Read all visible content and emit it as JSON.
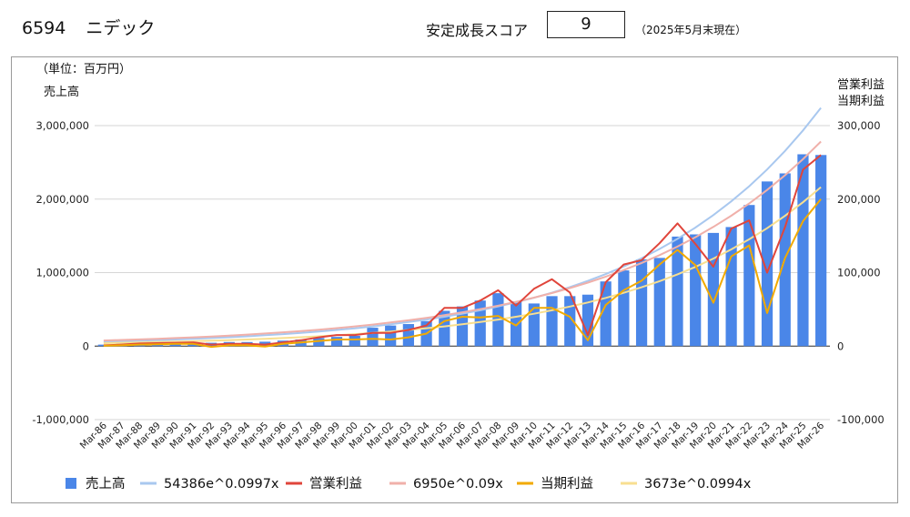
{
  "header": {
    "code": "6594",
    "name": "ニデック",
    "score_label": "安定成長スコア",
    "score_value": "9",
    "as_of": "（2025年5月末現在）"
  },
  "chart_data": {
    "type": "bar",
    "unit_label": "（単位：百万円）",
    "left_axis_title": "売上高",
    "right_axis_title_line1": "営業利益",
    "right_axis_title_line2": "当期利益",
    "left_axis": {
      "min": -1000000,
      "max": 3000000,
      "ticks": [
        "3,000,000",
        "2,000,000",
        "1,000,000",
        "0",
        "-1,000,000"
      ]
    },
    "right_axis": {
      "min": -100000,
      "max": 300000,
      "ticks": [
        "300,000",
        "200,000",
        "100,000",
        "0",
        "-100,000"
      ]
    },
    "grid": true,
    "legend_position": "bottom",
    "categories": [
      "Mar-86",
      "Mar-87",
      "Mar-88",
      "Mar-89",
      "Mar-90",
      "Mar-91",
      "Mar-92",
      "Mar-93",
      "Mar-94",
      "Mar-95",
      "Mar-96",
      "Mar-97",
      "Mar-98",
      "Mar-99",
      "Mar-00",
      "Mar-01",
      "Mar-02",
      "Mar-03",
      "Mar-04",
      "Mar-05",
      "Mar-06",
      "Mar-07",
      "Mar-08",
      "Mar-09",
      "Mar-10",
      "Mar-11",
      "Mar-12",
      "Mar-13",
      "Mar-14",
      "Mar-15",
      "Mar-16",
      "Mar-17",
      "Mar-18",
      "Mar-19",
      "Mar-20",
      "Mar-21",
      "Mar-22",
      "Mar-23",
      "Mar-24",
      "Mar-25",
      "Mar-26"
    ],
    "series": [
      {
        "name": "売上高",
        "kind": "bar",
        "axis": "left",
        "color": "#4a86e8",
        "values": [
          20000,
          30000,
          35000,
          38000,
          40000,
          42000,
          45000,
          55000,
          55000,
          60000,
          75000,
          90000,
          110000,
          125000,
          140000,
          250000,
          280000,
          300000,
          340000,
          480000,
          540000,
          620000,
          720000,
          610000,
          580000,
          680000,
          680000,
          700000,
          880000,
          1030000,
          1180000,
          1200000,
          1490000,
          1520000,
          1540000,
          1620000,
          1920000,
          2240000,
          2350000,
          2610000,
          2600000
        ]
      },
      {
        "name": "54386e^0.0997x",
        "kind": "trendline",
        "axis": "left",
        "color": "#a9c8ef",
        "formula": {
          "a": 54386,
          "b": 0.0997
        }
      },
      {
        "name": "営業利益",
        "kind": "line",
        "axis": "right",
        "color": "#e0453b",
        "values": [
          1000,
          2000,
          3500,
          4000,
          4500,
          5000,
          2000,
          3000,
          3000,
          2000,
          5000,
          8000,
          12000,
          15000,
          15000,
          18000,
          18000,
          22000,
          28000,
          52000,
          52000,
          62000,
          76000,
          55000,
          78000,
          91000,
          73000,
          15000,
          87000,
          111000,
          117000,
          140000,
          167000,
          139000,
          108000,
          160000,
          171000,
          100000,
          162000,
          240000,
          260000
        ]
      },
      {
        "name": "6950e^0.09x",
        "kind": "trendline",
        "axis": "right",
        "color": "#f0b0aa",
        "formula": {
          "a": 6950,
          "b": 0.09
        }
      },
      {
        "name": "当期利益",
        "kind": "line",
        "axis": "right",
        "color": "#f2aa00",
        "values": [
          500,
          1000,
          2000,
          2500,
          3000,
          3000,
          -1000,
          1000,
          1000,
          -500,
          3000,
          5000,
          7000,
          9000,
          9000,
          10000,
          9000,
          12000,
          17000,
          34000,
          40000,
          39000,
          41000,
          28000,
          52000,
          52000,
          40000,
          8000,
          56000,
          76000,
          89000,
          111000,
          131000,
          110000,
          59000,
          122000,
          137000,
          45000,
          120000,
          170000,
          200000
        ]
      },
      {
        "name": "3673e^0.0994x",
        "kind": "trendline",
        "axis": "right",
        "color": "#f8df90",
        "formula": {
          "a": 3673,
          "b": 0.0994
        }
      }
    ]
  }
}
